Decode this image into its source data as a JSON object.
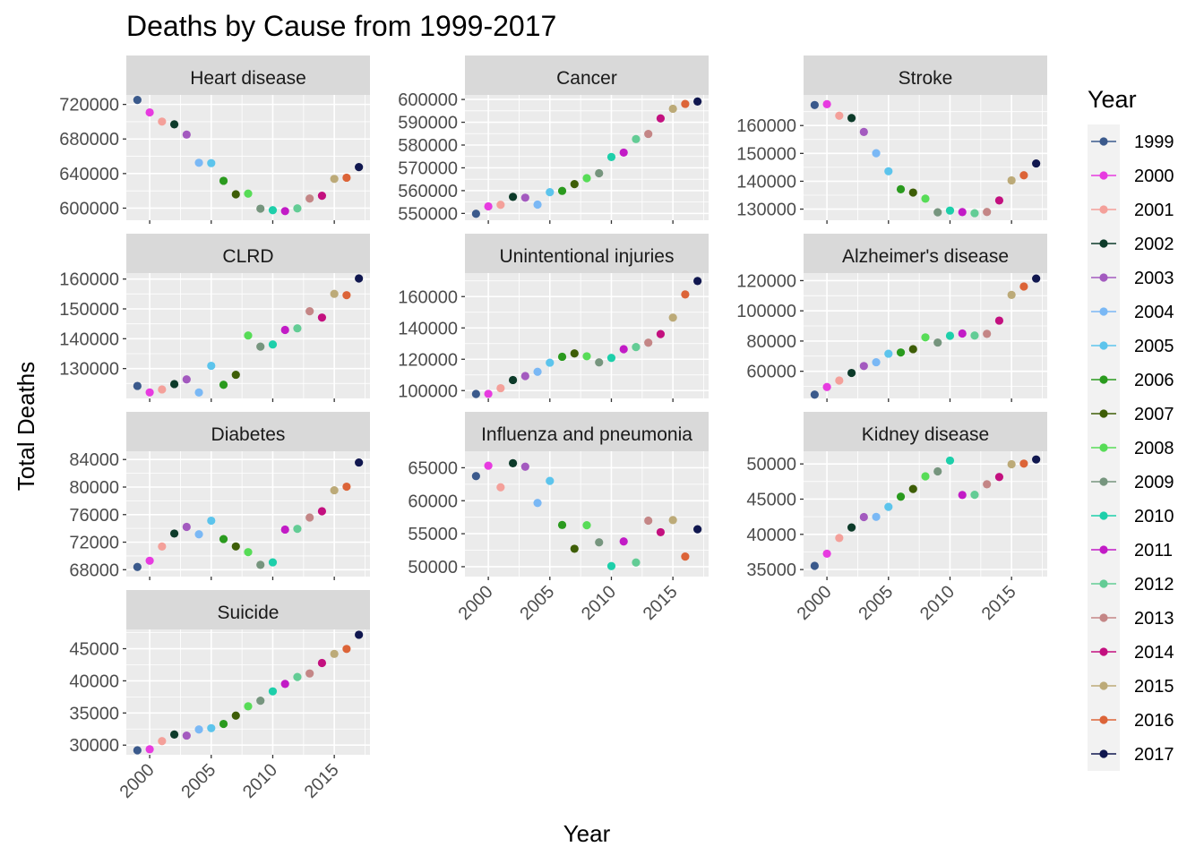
{
  "chart_data": {
    "type": "scatter",
    "title": "Deaths by Cause from 1999-2017",
    "xlabel": "Year",
    "ylabel": "Total Deaths",
    "xlim": [
      1998.1,
      2017.9
    ],
    "x_ticks": [
      2000,
      2005,
      2010,
      2015
    ],
    "legend": {
      "title": "Year",
      "placement": "right",
      "entries": [
        {
          "label": "1999",
          "color": "#3B5A8C"
        },
        {
          "label": "2000",
          "color": "#E73BE0"
        },
        {
          "label": "2001",
          "color": "#F4A09A"
        },
        {
          "label": "2002",
          "color": "#0D3B2A"
        },
        {
          "label": "2003",
          "color": "#A35ABF"
        },
        {
          "label": "2004",
          "color": "#7AB8F5"
        },
        {
          "label": "2005",
          "color": "#5CC4EC"
        },
        {
          "label": "2006",
          "color": "#2A9A1E"
        },
        {
          "label": "2007",
          "color": "#3E5E07"
        },
        {
          "label": "2008",
          "color": "#57DC57"
        },
        {
          "label": "2009",
          "color": "#76957E"
        },
        {
          "label": "2010",
          "color": "#1DCFAA"
        },
        {
          "label": "2011",
          "color": "#C21BC6"
        },
        {
          "label": "2012",
          "color": "#63CC95"
        },
        {
          "label": "2013",
          "color": "#C48686"
        },
        {
          "label": "2014",
          "color": "#C3107F"
        },
        {
          "label": "2015",
          "color": "#BCAA78"
        },
        {
          "label": "2016",
          "color": "#DC6438"
        },
        {
          "label": "2017",
          "color": "#10174F"
        }
      ]
    },
    "panels": [
      {
        "name": "Heart disease",
        "ylim": [
          586000,
          731000
        ],
        "y_ticks": [
          600000,
          640000,
          680000,
          720000
        ],
        "values": [
          725192,
          710760,
          700142,
          696947,
          685089,
          652486,
          652091,
          631636,
          616067,
          616828,
          599413,
          597689,
          596577,
          599711,
          611105,
          614348,
          633842,
          635260,
          647457
        ]
      },
      {
        "name": "Cancer",
        "ylim": [
          547000,
          602000
        ],
        "y_ticks": [
          550000,
          560000,
          570000,
          580000,
          590000,
          600000
        ],
        "values": [
          549838,
          553091,
          553768,
          557271,
          556902,
          553888,
          559312,
          559888,
          562875,
          565469,
          567628,
          574743,
          576691,
          582623,
          584881,
          591699,
          595930,
          598038,
          599108
        ]
      },
      {
        "name": "Stroke",
        "ylim": [
          126000,
          171000
        ],
        "y_ticks": [
          130000,
          140000,
          150000,
          160000
        ],
        "values": [
          167366,
          167661,
          163538,
          162672,
          157689,
          150074,
          143579,
          137119,
          135952,
          133750,
          128842,
          129476,
          128932,
          128546,
          128978,
          133103,
          140323,
          142142,
          146383
        ]
      },
      {
        "name": "CLRD",
        "ylim": [
          120000,
          162000
        ],
        "y_ticks": [
          130000,
          140000,
          150000,
          160000
        ],
        "values": [
          124181,
          122009,
          123013,
          124816,
          126382,
          121987,
          130933,
          124583,
          127924,
          141090,
          137353,
          138080,
          142943,
          143489,
          149205,
          147101,
          155041,
          154596,
          160201
        ]
      },
      {
        "name": "Unintentional injuries",
        "ylim": [
          95000,
          175000
        ],
        "y_ticks": [
          100000,
          120000,
          140000,
          160000
        ],
        "values": [
          97860,
          97900,
          101537,
          106742,
          109277,
          112012,
          117809,
          121599,
          123706,
          121902,
          118021,
          120859,
          126438,
          127792,
          130557,
          136053,
          146571,
          161374,
          169936
        ]
      },
      {
        "name": "Alzheimer's disease",
        "ylim": [
          42000,
          125000
        ],
        "y_ticks": [
          60000,
          80000,
          100000,
          120000
        ],
        "values": [
          44536,
          49558,
          53852,
          58866,
          63457,
          65965,
          71599,
          72432,
          74632,
          82435,
          79003,
          83494,
          84974,
          83637,
          84767,
          93541,
          110561,
          116103,
          121404
        ]
      },
      {
        "name": "Diabetes",
        "ylim": [
          67000,
          85200
        ],
        "y_ticks": [
          68000,
          72000,
          76000,
          80000,
          84000
        ],
        "values": [
          68399,
          69301,
          71372,
          73249,
          74219,
          73138,
          75119,
          72449,
          71382,
          70553,
          68705,
          69071,
          73831,
          73932,
          75578,
          76488,
          79535,
          80058,
          83564
        ]
      },
      {
        "name": "Influenza and pneumonia",
        "ylim": [
          48500,
          67500
        ],
        "y_ticks": [
          50000,
          55000,
          60000,
          65000
        ],
        "values": [
          63730,
          65313,
          62034,
          65681,
          65163,
          59664,
          63001,
          56326,
          52717,
          56284,
          53692,
          50097,
          53826,
          50636,
          56979,
          55227,
          57062,
          51537,
          55672
        ]
      },
      {
        "name": "Kidney disease",
        "ylim": [
          34000,
          51800
        ],
        "y_ticks": [
          35000,
          40000,
          45000,
          50000
        ],
        "values": [
          35525,
          37251,
          39480,
          40974,
          42453,
          42480,
          43901,
          45344,
          46448,
          48237,
          48935,
          50476,
          45591,
          45622,
          47112,
          48146,
          49959,
          50046,
          50633
        ]
      },
      {
        "name": "Suicide",
        "ylim": [
          28500,
          48000
        ],
        "y_ticks": [
          30000,
          35000,
          40000,
          45000
        ],
        "values": [
          29199,
          29350,
          30622,
          31655,
          31484,
          32439,
          32637,
          33300,
          34598,
          36035,
          36909,
          38364,
          39518,
          40600,
          41149,
          42773,
          44193,
          44965,
          47173
        ]
      }
    ]
  }
}
